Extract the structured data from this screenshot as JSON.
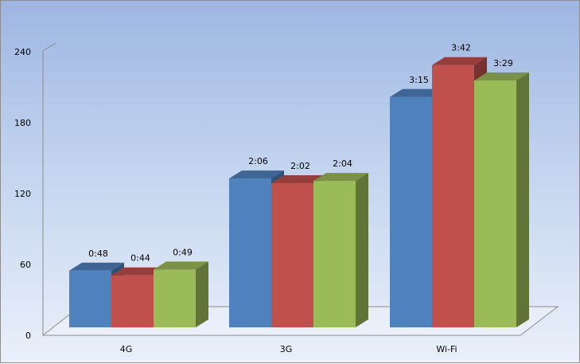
{
  "chart_data": {
    "type": "bar",
    "style": "3d-clustered-column",
    "categories": [
      "4G",
      "3G",
      "Wi-Fi"
    ],
    "series": [
      {
        "values": [
          48,
          126,
          195
        ],
        "labels": [
          "0:48",
          "2:06",
          "3:15"
        ],
        "color": "#4f81bd"
      },
      {
        "values": [
          44,
          122,
          222
        ],
        "labels": [
          "0:44",
          "2:02",
          "3:42"
        ],
        "color": "#c0504d"
      },
      {
        "values": [
          49,
          124,
          209
        ],
        "labels": [
          "0:49",
          "2:04",
          "3:29"
        ],
        "color": "#9bbb59"
      }
    ],
    "yticks": [
      "0",
      "60",
      "120",
      "180",
      "240"
    ],
    "ylim": [
      0,
      240
    ],
    "grid": false,
    "legend": "none"
  }
}
